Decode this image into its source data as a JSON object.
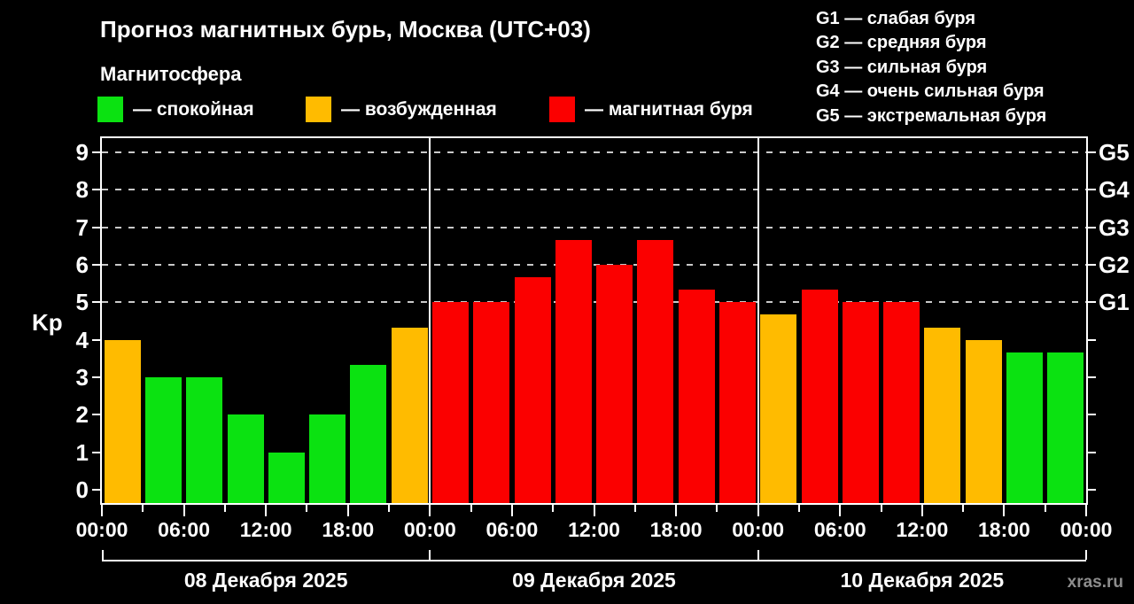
{
  "header": {
    "title": "Прогноз магнитных бурь, Москва (UTC+03)",
    "subtitle": "Магнитосфера"
  },
  "legend": {
    "items": [
      {
        "label": "— спокойная",
        "status": "quiet"
      },
      {
        "label": "— возбужденная",
        "status": "excited"
      },
      {
        "label": "— магнитная буря",
        "status": "storm"
      }
    ]
  },
  "g_legend": [
    "G1 — слабая буря",
    "G2 — средняя буря",
    "G3 — сильная буря",
    "G4 — очень сильная буря",
    "G5 — экстремальная буря"
  ],
  "watermark": "xras.ru",
  "chart_data": {
    "type": "bar",
    "title": "Прогноз магнитных бурь, Москва (UTC+03)",
    "subtitle": "Магнитосфера",
    "xlabel": "",
    "ylabel": "Kp",
    "ylim": [
      0,
      9
    ],
    "y_ticks": [
      0,
      1,
      2,
      3,
      4,
      5,
      6,
      7,
      8,
      9
    ],
    "gridlines": [
      5,
      6,
      7,
      8,
      9
    ],
    "grid_style": "dashed horizontal lines at Kp 5-9 (G-storm levels)",
    "legend_position": "top",
    "interval_hours": 3,
    "right_axis": [
      {
        "kp": 5,
        "label": "G1"
      },
      {
        "kp": 6,
        "label": "G2"
      },
      {
        "kp": 7,
        "label": "G3"
      },
      {
        "kp": 8,
        "label": "G4"
      },
      {
        "kp": 9,
        "label": "G5"
      }
    ],
    "x_major_labels": [
      "00:00",
      "06:00",
      "12:00",
      "18:00",
      "00:00",
      "06:00",
      "12:00",
      "18:00",
      "00:00",
      "06:00",
      "12:00",
      "18:00",
      "00:00"
    ],
    "status_colors": {
      "quiet": "#0be211",
      "excited": "#ffbb00",
      "storm": "#fb0000"
    },
    "days": [
      {
        "date": "08 Декабря 2025",
        "bars": [
          {
            "time": "00:00",
            "kp": 4.0,
            "status": "excited"
          },
          {
            "time": "03:00",
            "kp": 3.0,
            "status": "quiet"
          },
          {
            "time": "06:00",
            "kp": 3.0,
            "status": "quiet"
          },
          {
            "time": "09:00",
            "kp": 2.0,
            "status": "quiet"
          },
          {
            "time": "12:00",
            "kp": 1.0,
            "status": "quiet"
          },
          {
            "time": "15:00",
            "kp": 2.0,
            "status": "quiet"
          },
          {
            "time": "18:00",
            "kp": 3.33,
            "status": "quiet"
          },
          {
            "time": "21:00",
            "kp": 4.33,
            "status": "excited"
          }
        ]
      },
      {
        "date": "09 Декабря 2025",
        "bars": [
          {
            "time": "00:00",
            "kp": 5.0,
            "status": "storm"
          },
          {
            "time": "03:00",
            "kp": 5.0,
            "status": "storm"
          },
          {
            "time": "06:00",
            "kp": 5.67,
            "status": "storm"
          },
          {
            "time": "09:00",
            "kp": 6.67,
            "status": "storm"
          },
          {
            "time": "12:00",
            "kp": 6.0,
            "status": "storm"
          },
          {
            "time": "15:00",
            "kp": 6.67,
            "status": "storm"
          },
          {
            "time": "18:00",
            "kp": 5.33,
            "status": "storm"
          },
          {
            "time": "21:00",
            "kp": 5.0,
            "status": "storm"
          }
        ]
      },
      {
        "date": "10 Декабря 2025",
        "bars": [
          {
            "time": "00:00",
            "kp": 4.67,
            "status": "excited"
          },
          {
            "time": "03:00",
            "kp": 5.33,
            "status": "storm"
          },
          {
            "time": "06:00",
            "kp": 5.0,
            "status": "storm"
          },
          {
            "time": "09:00",
            "kp": 5.0,
            "status": "storm"
          },
          {
            "time": "12:00",
            "kp": 4.33,
            "status": "excited"
          },
          {
            "time": "15:00",
            "kp": 4.0,
            "status": "excited"
          },
          {
            "time": "18:00",
            "kp": 3.67,
            "status": "quiet"
          },
          {
            "time": "21:00",
            "kp": 3.67,
            "status": "quiet"
          }
        ]
      }
    ]
  }
}
